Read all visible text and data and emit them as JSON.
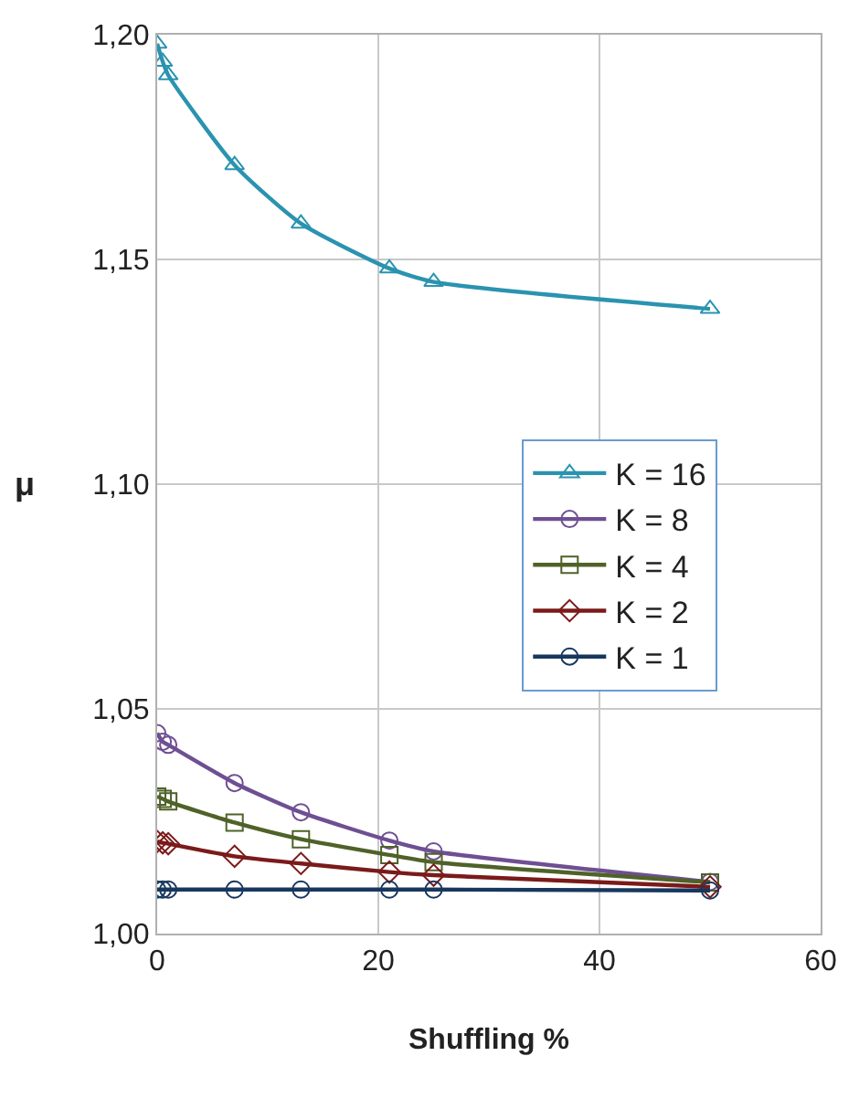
{
  "chart_data": {
    "type": "line",
    "xlabel": "Shuffling %",
    "ylabel": "μ",
    "x": [
      0,
      0.5,
      1,
      7,
      13,
      21,
      25,
      50
    ],
    "series": [
      {
        "name": "K = 16",
        "color": "#2a93b0",
        "marker": "triangle",
        "values": [
          1.198,
          1.194,
          1.191,
          1.171,
          1.158,
          1.148,
          1.145,
          1.139
        ]
      },
      {
        "name": "K = 8",
        "color": "#6f4f93",
        "marker": "circle",
        "values": [
          1.0446,
          1.0427,
          1.042,
          1.0335,
          1.027,
          1.0207,
          1.0183,
          1.0115
        ]
      },
      {
        "name": "K = 4",
        "color": "#4f6228",
        "marker": "square",
        "values": [
          1.0305,
          1.03,
          1.0294,
          1.0247,
          1.021,
          1.0175,
          1.0159,
          1.0114
        ]
      },
      {
        "name": "K = 2",
        "color": "#7b1a1a",
        "marker": "diamond",
        "values": [
          1.0205,
          1.0202,
          1.02,
          1.0172,
          1.0156,
          1.0137,
          1.013,
          1.0104
        ]
      },
      {
        "name": "K = 1",
        "color": "#17375e",
        "marker": "circle",
        "values": [
          1.0098,
          1.0098,
          1.0098,
          1.0098,
          1.0098,
          1.0098,
          1.0098,
          1.0096
        ]
      }
    ],
    "xlim": [
      0,
      60
    ],
    "xticks": [
      0,
      20,
      40,
      60
    ],
    "ylim": [
      1.0,
      1.2
    ],
    "yticks": [
      {
        "value": 1.0,
        "label": "1,00"
      },
      {
        "value": 1.05,
        "label": "1,05"
      },
      {
        "value": 1.1,
        "label": "1,10"
      },
      {
        "value": 1.15,
        "label": "1,15"
      },
      {
        "value": 1.2,
        "label": "1,20"
      }
    ],
    "grid": true,
    "legend": "right",
    "line_style": "solid"
  }
}
